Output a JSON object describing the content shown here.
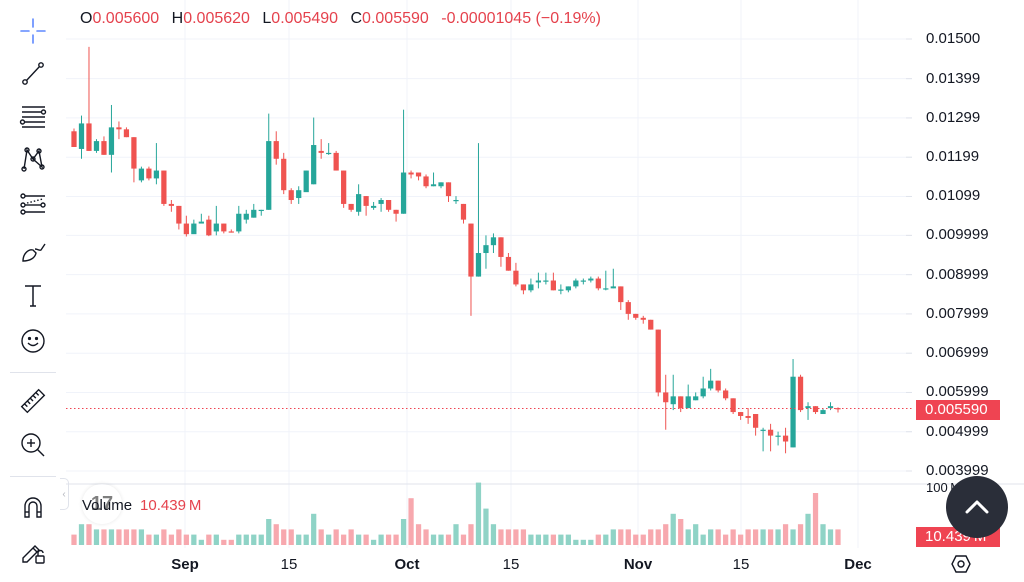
{
  "legend": {
    "open_label": "O",
    "open": "0.005600",
    "high_label": "H",
    "high": "0.005620",
    "low_label": "L",
    "low": "0.005490",
    "close_label": "C",
    "close": "0.005590",
    "change": "-0.00001045 (−0.19%)"
  },
  "toolbar": {
    "items": [
      {
        "name": "crosshair-icon"
      },
      {
        "name": "trend-line-icon"
      },
      {
        "name": "fib-retracement-icon"
      },
      {
        "name": "pattern-icon"
      },
      {
        "name": "prediction-icon"
      },
      {
        "name": "brush-icon"
      },
      {
        "name": "text-icon"
      },
      {
        "name": "emoji-icon"
      },
      {
        "name": "ruler-icon"
      },
      {
        "name": "zoom-in-icon"
      },
      {
        "name": "magnet-icon"
      },
      {
        "name": "lock-drawings-icon"
      }
    ],
    "collapse_glyph": "‹"
  },
  "price_axis": {
    "labels": [
      "0.01500",
      "0.01399",
      "0.01299",
      "0.01199",
      "0.01099",
      "0.009999",
      "0.008999",
      "0.007999",
      "0.006999",
      "0.005999",
      "0.004999",
      "0.003999"
    ],
    "current_price": "0.005590"
  },
  "volume": {
    "label": "Volume",
    "value": "10.439 M",
    "axis_label": "100 M",
    "badge": "10.439 M"
  },
  "time_axis": [
    {
      "label": "Sep",
      "bold": true
    },
    {
      "label": "15",
      "bold": false
    },
    {
      "label": "Oct",
      "bold": true
    },
    {
      "label": "15",
      "bold": false
    },
    {
      "label": "Nov",
      "bold": true
    },
    {
      "label": "15",
      "bold": false
    },
    {
      "label": "Dec",
      "bold": true
    }
  ],
  "logo_text": "17",
  "colors": {
    "up": "#26a69a",
    "down": "#ef5350",
    "up_vol": "#8fd3c6",
    "down_vol": "#f7a8ae",
    "price_line": "#ef4452"
  },
  "chart_data": {
    "type": "candlestick",
    "title": "",
    "ylim": [
      0.0036,
      0.0152
    ],
    "price_ticks": [
      0.015,
      0.01399,
      0.01299,
      0.01199,
      0.01099,
      0.009999,
      0.008999,
      0.007999,
      0.006999,
      0.005999,
      0.004999,
      0.003999
    ],
    "x_ticks": [
      "Sep",
      "15",
      "Oct",
      "15",
      "Nov",
      "15",
      "Dec"
    ],
    "current_price": 0.00559,
    "candles": [
      [
        0.01265,
        0.01225,
        0.01272,
        0.01225,
        2
      ],
      [
        0.0122,
        0.01285,
        0.01305,
        0.01195,
        4
      ],
      [
        0.01285,
        0.01215,
        0.0148,
        0.01215,
        4
      ],
      [
        0.01215,
        0.0124,
        0.01245,
        0.0121,
        3
      ],
      [
        0.0124,
        0.01205,
        0.01252,
        0.01205,
        3
      ],
      [
        0.01205,
        0.01275,
        0.01332,
        0.0116,
        3
      ],
      [
        0.01275,
        0.0127,
        0.0129,
        0.01245,
        3
      ],
      [
        0.0127,
        0.0125,
        0.01275,
        0.0125,
        3
      ],
      [
        0.0125,
        0.0117,
        0.0125,
        0.01135,
        3
      ],
      [
        0.0114,
        0.0117,
        0.01175,
        0.01135,
        3
      ],
      [
        0.0117,
        0.01145,
        0.01175,
        0.0114,
        2
      ],
      [
        0.01145,
        0.01165,
        0.01235,
        0.0113,
        2
      ],
      [
        0.01165,
        0.0108,
        0.01165,
        0.01075,
        3
      ],
      [
        0.0108,
        0.01075,
        0.0109,
        0.0106,
        2
      ],
      [
        0.01075,
        0.0103,
        0.01075,
        0.01015,
        3
      ],
      [
        0.0103,
        0.01003,
        0.0105,
        0.00997,
        2
      ],
      [
        0.01003,
        0.0103,
        0.0104,
        0.01005,
        2
      ],
      [
        0.0103,
        0.01035,
        0.01055,
        0.01035,
        1
      ],
      [
        0.0104,
        0.01,
        0.0105,
        0.00998,
        2
      ],
      [
        0.0101,
        0.0103,
        0.01075,
        0.01,
        2
      ],
      [
        0.0103,
        0.0101,
        0.0103,
        0.01005,
        1
      ],
      [
        0.0101,
        0.01007,
        0.01015,
        0.01007,
        1
      ],
      [
        0.0101,
        0.01055,
        0.01075,
        0.01005,
        2
      ],
      [
        0.0104,
        0.01055,
        0.01065,
        0.0103,
        2
      ],
      [
        0.01045,
        0.01065,
        0.0108,
        0.01045,
        2
      ],
      [
        0.01065,
        0.01065,
        0.01065,
        0.0105,
        2
      ],
      [
        0.01065,
        0.0124,
        0.0131,
        0.01065,
        5
      ],
      [
        0.0124,
        0.01195,
        0.01265,
        0.0118,
        4
      ],
      [
        0.01195,
        0.01115,
        0.0121,
        0.01105,
        3
      ],
      [
        0.01115,
        0.0109,
        0.0112,
        0.0108,
        3
      ],
      [
        0.01095,
        0.01115,
        0.01125,
        0.0108,
        2
      ],
      [
        0.0111,
        0.01165,
        0.01165,
        0.0112,
        2
      ],
      [
        0.0113,
        0.0123,
        0.013,
        0.0113,
        6
      ],
      [
        0.01215,
        0.0121,
        0.01245,
        0.01195,
        3
      ],
      [
        0.0121,
        0.0121,
        0.01235,
        0.01205,
        2
      ],
      [
        0.0121,
        0.01165,
        0.01215,
        0.01165,
        3
      ],
      [
        0.01165,
        0.0108,
        0.01165,
        0.0107,
        2
      ],
      [
        0.0108,
        0.01065,
        0.0108,
        0.0106,
        3
      ],
      [
        0.0106,
        0.01105,
        0.0113,
        0.0105,
        2
      ],
      [
        0.011,
        0.01075,
        0.011,
        0.0105,
        2
      ],
      [
        0.0107,
        0.01075,
        0.01085,
        0.01065,
        1
      ],
      [
        0.0108,
        0.0109,
        0.01095,
        0.0106,
        2
      ],
      [
        0.0109,
        0.01065,
        0.0109,
        0.0106,
        2
      ],
      [
        0.01065,
        0.01055,
        0.01065,
        0.01035,
        2
      ],
      [
        0.01055,
        0.0116,
        0.0132,
        0.01055,
        5
      ],
      [
        0.0116,
        0.01155,
        0.01165,
        0.01145,
        9
      ],
      [
        0.0116,
        0.0115,
        0.01155,
        0.0114,
        4
      ],
      [
        0.0115,
        0.01125,
        0.01155,
        0.0112,
        3
      ],
      [
        0.01125,
        0.0113,
        0.0116,
        0.01125,
        2
      ],
      [
        0.01125,
        0.01135,
        0.01135,
        0.0112,
        2
      ],
      [
        0.01135,
        0.011,
        0.01135,
        0.01085,
        2
      ],
      [
        0.0109,
        0.0109,
        0.011,
        0.0108,
        4
      ],
      [
        0.0108,
        0.0104,
        0.0108,
        0.0103,
        2
      ],
      [
        0.0103,
        0.00895,
        0.0103,
        0.00795,
        4
      ],
      [
        0.00895,
        0.00955,
        0.01235,
        0.00895,
        12
      ],
      [
        0.00955,
        0.00975,
        0.01,
        0.00915,
        7
      ],
      [
        0.00975,
        0.00995,
        0.01005,
        0.00955,
        4
      ],
      [
        0.00995,
        0.00945,
        0.00995,
        0.0092,
        3
      ],
      [
        0.00945,
        0.0091,
        0.00955,
        0.0091,
        3
      ],
      [
        0.0091,
        0.00875,
        0.0093,
        0.0087,
        3
      ],
      [
        0.00875,
        0.0086,
        0.00875,
        0.0085,
        3
      ],
      [
        0.0086,
        0.00875,
        0.0089,
        0.00855,
        2
      ],
      [
        0.0088,
        0.00885,
        0.00905,
        0.00865,
        2
      ],
      [
        0.00885,
        0.00885,
        0.00905,
        0.00875,
        2
      ],
      [
        0.00885,
        0.0086,
        0.00905,
        0.0086,
        2
      ],
      [
        0.0086,
        0.00862,
        0.00875,
        0.0085,
        2
      ],
      [
        0.0086,
        0.0087,
        0.0087,
        0.00855,
        2
      ],
      [
        0.0087,
        0.00885,
        0.0089,
        0.00865,
        1
      ],
      [
        0.00885,
        0.00885,
        0.0089,
        0.00875,
        1
      ],
      [
        0.00885,
        0.0089,
        0.00895,
        0.0088,
        1
      ],
      [
        0.0089,
        0.00865,
        0.00895,
        0.0086,
        2
      ],
      [
        0.00865,
        0.00865,
        0.0091,
        0.0086,
        2
      ],
      [
        0.00865,
        0.0087,
        0.00915,
        0.00865,
        3
      ],
      [
        0.0087,
        0.0083,
        0.0087,
        0.0081,
        3
      ],
      [
        0.0083,
        0.008,
        0.00835,
        0.00785,
        3
      ],
      [
        0.008,
        0.0079,
        0.008,
        0.00785,
        2
      ],
      [
        0.0079,
        0.00785,
        0.00795,
        0.00775,
        2
      ],
      [
        0.00785,
        0.0076,
        0.00785,
        0.0076,
        3
      ],
      [
        0.0076,
        0.006,
        0.0076,
        0.0059,
        3
      ],
      [
        0.006,
        0.00575,
        0.00645,
        0.00505,
        4
      ],
      [
        0.0057,
        0.0059,
        0.00645,
        0.00555,
        6
      ],
      [
        0.0059,
        0.0056,
        0.0059,
        0.0055,
        5
      ],
      [
        0.0056,
        0.0059,
        0.0062,
        0.0056,
        3
      ],
      [
        0.0058,
        0.0059,
        0.006,
        0.0058,
        4
      ],
      [
        0.0059,
        0.0061,
        0.0064,
        0.00585,
        2
      ],
      [
        0.0061,
        0.0063,
        0.0066,
        0.00605,
        3
      ],
      [
        0.0063,
        0.00605,
        0.0063,
        0.006,
        3
      ],
      [
        0.00605,
        0.00585,
        0.0061,
        0.0058,
        2
      ],
      [
        0.00585,
        0.0055,
        0.00585,
        0.00545,
        3
      ],
      [
        0.0055,
        0.0054,
        0.0055,
        0.0053,
        2
      ],
      [
        0.0054,
        0.00535,
        0.0056,
        0.0052,
        3
      ],
      [
        0.00545,
        0.0051,
        0.00545,
        0.0049,
        3
      ],
      [
        0.00505,
        0.00505,
        0.0051,
        0.0045,
        3
      ],
      [
        0.00505,
        0.0049,
        0.0052,
        0.0045,
        3
      ],
      [
        0.0049,
        0.0049,
        0.005,
        0.00465,
        3
      ],
      [
        0.0049,
        0.00475,
        0.0051,
        0.00445,
        4
      ],
      [
        0.0046,
        0.0064,
        0.00685,
        0.0046,
        3
      ],
      [
        0.0064,
        0.00555,
        0.00645,
        0.0055,
        4
      ],
      [
        0.0056,
        0.00565,
        0.00575,
        0.0053,
        6
      ],
      [
        0.00565,
        0.0055,
        0.00565,
        0.00545,
        10
      ],
      [
        0.00545,
        0.00555,
        0.0056,
        0.00545,
        4
      ],
      [
        0.0056,
        0.00565,
        0.00575,
        0.00555,
        3
      ],
      [
        0.0056,
        0.00559,
        0.00562,
        0.00549,
        3
      ]
    ]
  }
}
